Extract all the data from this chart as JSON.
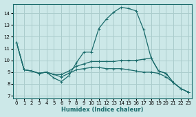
{
  "xlabel": "Humidex (Indice chaleur)",
  "bg_color": "#cce8e8",
  "grid_color": "#aacccc",
  "line_color": "#1a6b6b",
  "marker": "+",
  "xlim": [
    -0.5,
    23.5
  ],
  "ylim": [
    6.8,
    14.8
  ],
  "yticks": [
    7,
    8,
    9,
    10,
    11,
    12,
    13,
    14
  ],
  "xticks": [
    0,
    1,
    2,
    3,
    4,
    5,
    6,
    7,
    8,
    9,
    10,
    11,
    12,
    13,
    14,
    15,
    16,
    17,
    18,
    19,
    20,
    21,
    22,
    23
  ],
  "line1_x": [
    0,
    1,
    2,
    3,
    4,
    5,
    6,
    7,
    8,
    9,
    10,
    11,
    12,
    13,
    14,
    15,
    16,
    17,
    18,
    19,
    20,
    21,
    22,
    23
  ],
  "line1_y": [
    11.5,
    9.2,
    9.1,
    8.9,
    9.0,
    8.5,
    8.2,
    8.7,
    9.8,
    10.7,
    10.7,
    12.7,
    13.5,
    14.1,
    14.5,
    14.4,
    14.2,
    12.6,
    10.2,
    9.1,
    8.9,
    8.1,
    7.6,
    7.3
  ],
  "line2_x": [
    0,
    1,
    2,
    3,
    4,
    5,
    6,
    7,
    8,
    9,
    10,
    11,
    12,
    13,
    14,
    15,
    16,
    17,
    18,
    19,
    20,
    21,
    22,
    23
  ],
  "line2_y": [
    11.5,
    9.2,
    9.1,
    8.9,
    9.0,
    8.8,
    8.8,
    9.1,
    9.5,
    9.7,
    9.9,
    9.9,
    9.9,
    9.9,
    10.0,
    10.0,
    10.0,
    10.1,
    10.2,
    9.1,
    8.9,
    8.1,
    7.6,
    7.3
  ],
  "line3_x": [
    0,
    1,
    2,
    3,
    4,
    5,
    6,
    7,
    8,
    9,
    10,
    11,
    12,
    13,
    14,
    15,
    16,
    17,
    18,
    19,
    20,
    21,
    22,
    23
  ],
  "line3_y": [
    11.5,
    9.2,
    9.1,
    8.9,
    9.0,
    8.8,
    8.6,
    8.9,
    9.2,
    9.3,
    9.4,
    9.4,
    9.3,
    9.3,
    9.3,
    9.2,
    9.1,
    9.0,
    9.0,
    8.9,
    8.6,
    8.1,
    7.6,
    7.3
  ]
}
